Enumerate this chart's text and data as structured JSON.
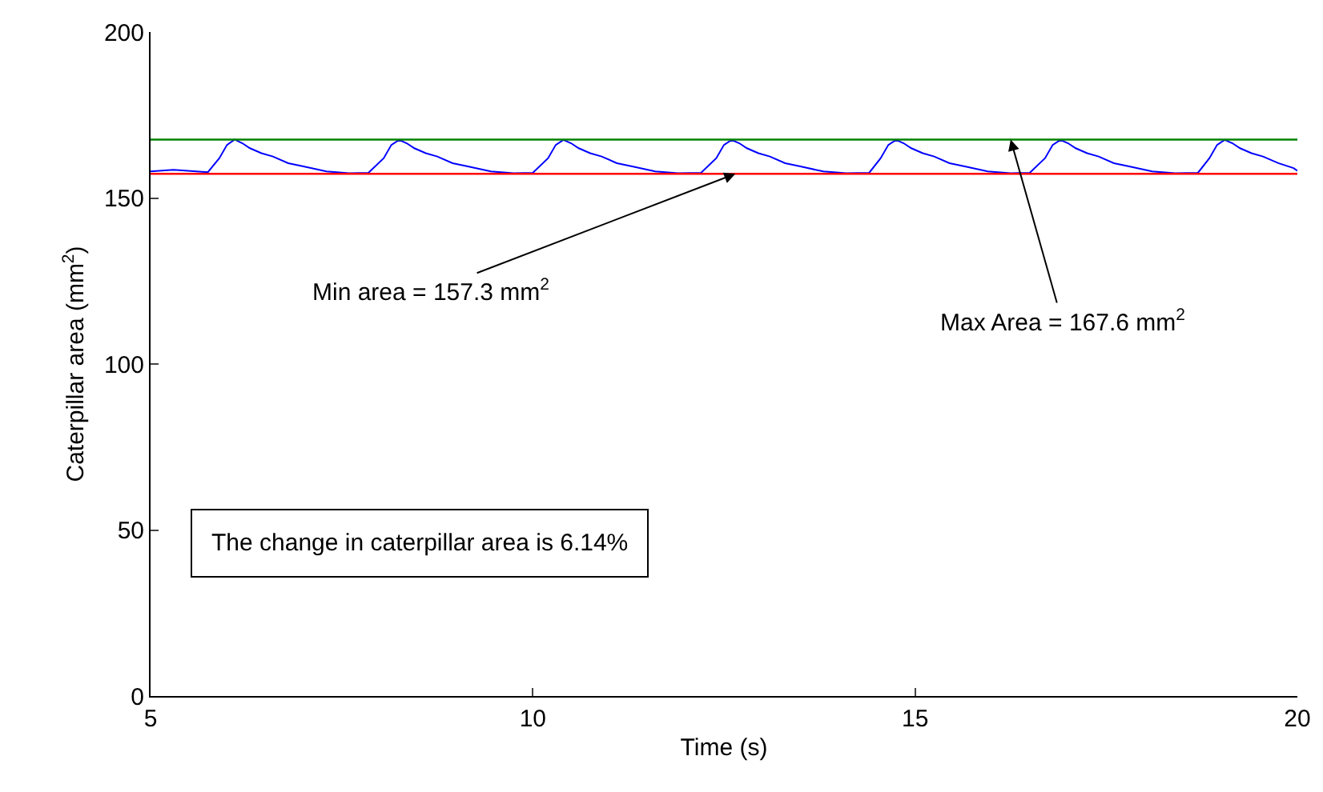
{
  "chart_data": {
    "type": "line",
    "xlabel": "Time (s)",
    "ylabel": "Caterpillar area (mm$^{2}$)",
    "xlim": [
      5,
      20
    ],
    "xticks": [
      5,
      10,
      15,
      20
    ],
    "ylim": [
      0,
      200
    ],
    "yticks": [
      0,
      50,
      100,
      150,
      200
    ],
    "marker": "none",
    "line_style": "solid",
    "series": [
      {
        "color": "#0000ff",
        "x": [
          5,
          5.3,
          5.6,
          5.75,
          5.9,
          6.0,
          6.1,
          6.2,
          6.3,
          6.45,
          6.6,
          6.8,
          7.0,
          7.3,
          7.6,
          7.85,
          8.05,
          8.15,
          8.25,
          8.35,
          8.45,
          8.6,
          8.75,
          8.95,
          9.15,
          9.45,
          9.75,
          10.0,
          10.2,
          10.3,
          10.4,
          10.5,
          10.6,
          10.75,
          10.9,
          11.1,
          11.3,
          11.6,
          11.9,
          12.2,
          12.4,
          12.5,
          12.6,
          12.7,
          12.8,
          12.95,
          13.1,
          13.3,
          13.5,
          13.8,
          14.1,
          14.4,
          14.55,
          14.65,
          14.75,
          14.85,
          14.95,
          15.1,
          15.25,
          15.45,
          15.65,
          15.95,
          16.25,
          16.5,
          16.7,
          16.8,
          16.9,
          17.0,
          17.1,
          17.25,
          17.4,
          17.6,
          17.8,
          18.1,
          18.4,
          18.7,
          18.85,
          18.95,
          19.05,
          19.15,
          19.25,
          19.4,
          19.55,
          19.75,
          19.95,
          20
        ],
        "values": [
          158,
          158.5,
          158,
          157.8,
          162,
          166,
          167.6,
          166.5,
          165,
          163.5,
          162.5,
          160.5,
          159.5,
          158,
          157.5,
          157.6,
          162,
          166,
          167.5,
          166.5,
          165,
          163.5,
          162.5,
          160.5,
          159.5,
          158,
          157.5,
          157.6,
          162,
          166,
          167.5,
          166.5,
          165,
          163.5,
          162.5,
          160.5,
          159.5,
          158,
          157.5,
          157.6,
          162,
          166,
          167.5,
          166.5,
          165,
          163.5,
          162.5,
          160.5,
          159.5,
          158,
          157.5,
          157.6,
          162,
          166,
          167.5,
          166.5,
          165,
          163.5,
          162.5,
          160.5,
          159.5,
          158,
          157.5,
          157.6,
          162,
          166,
          167.5,
          166.5,
          165,
          163.5,
          162.5,
          160.5,
          159.5,
          158,
          157.5,
          157.6,
          162,
          166,
          167.5,
          166.5,
          165,
          163.5,
          162.5,
          160.5,
          159,
          158.2
        ]
      }
    ],
    "ref_lines": [
      {
        "axis": "y",
        "value": 157.3,
        "color": "#ff0000"
      },
      {
        "axis": "y",
        "value": 167.6,
        "color": "#008000"
      }
    ],
    "annotations": [
      {
        "text": "Min area = 157.3 mm$^{2}$",
        "x": 12.65,
        "y": 157.3
      },
      {
        "text": "Max Area = 167.6 mm$^{2}$",
        "x": 16.25,
        "y": 167.6
      },
      "The change in caterpillar area is 6.14%"
    ]
  }
}
